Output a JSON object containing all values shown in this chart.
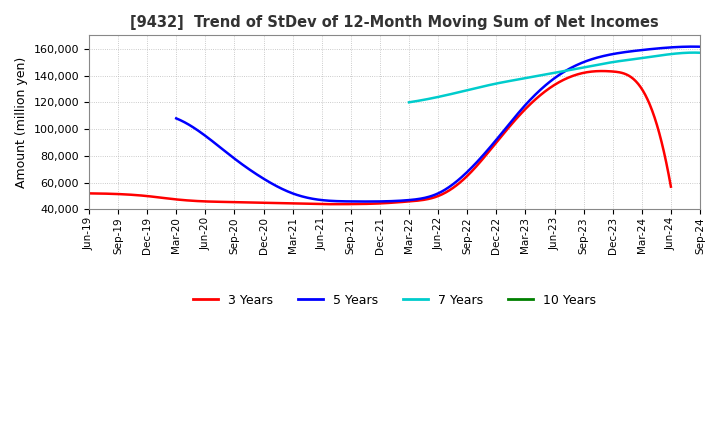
{
  "title": "[9432]  Trend of StDev of 12-Month Moving Sum of Net Incomes",
  "ylabel": "Amount (million yen)",
  "ylim": [
    40000,
    170000
  ],
  "yticks": [
    40000,
    60000,
    80000,
    100000,
    120000,
    140000,
    160000
  ],
  "background_color": "#ffffff",
  "grid_color": "#bbbbbb",
  "series_3yr_color": "#ff0000",
  "series_5yr_color": "#0000ff",
  "series_7yr_color": "#00cccc",
  "series_10yr_color": "#008000",
  "kp3x": [
    0,
    3,
    6,
    9,
    12,
    15,
    18,
    21,
    24,
    27,
    30,
    33,
    36,
    39,
    42,
    45,
    48,
    51,
    54,
    57,
    60
  ],
  "kp3y": [
    52000,
    51500,
    50000,
    47500,
    46000,
    45500,
    45000,
    44500,
    44000,
    44000,
    44500,
    46000,
    50000,
    65000,
    90000,
    115000,
    133000,
    142000,
    143000,
    130000,
    57000
  ],
  "kp5x": [
    9,
    12,
    15,
    18,
    21,
    24,
    27,
    30,
    33,
    36,
    39,
    42,
    45,
    48,
    51,
    54,
    57,
    60,
    63
  ],
  "kp5y": [
    108000,
    95000,
    78000,
    63000,
    52000,
    47000,
    46000,
    46000,
    47000,
    52000,
    68000,
    92000,
    118000,
    138000,
    150000,
    156000,
    159000,
    161000,
    161500
  ],
  "kp7x": [
    33,
    36,
    39,
    42,
    45,
    48,
    51,
    54,
    57,
    60,
    63
  ],
  "kp7y": [
    120000,
    124000,
    129000,
    134000,
    138000,
    142000,
    146000,
    150000,
    153000,
    156000,
    157000
  ],
  "xtick_labels": [
    "Jun-19",
    "Sep-19",
    "Dec-19",
    "Mar-20",
    "Jun-20",
    "Sep-20",
    "Dec-20",
    "Mar-21",
    "Jun-21",
    "Sep-21",
    "Dec-21",
    "Mar-22",
    "Jun-22",
    "Sep-22",
    "Dec-22",
    "Mar-23",
    "Jun-23",
    "Sep-23",
    "Dec-23",
    "Mar-24",
    "Jun-24",
    "Sep-24"
  ],
  "xtick_positions": [
    0,
    3,
    6,
    9,
    12,
    15,
    18,
    21,
    24,
    27,
    30,
    33,
    36,
    39,
    42,
    45,
    48,
    51,
    54,
    57,
    60,
    63
  ]
}
